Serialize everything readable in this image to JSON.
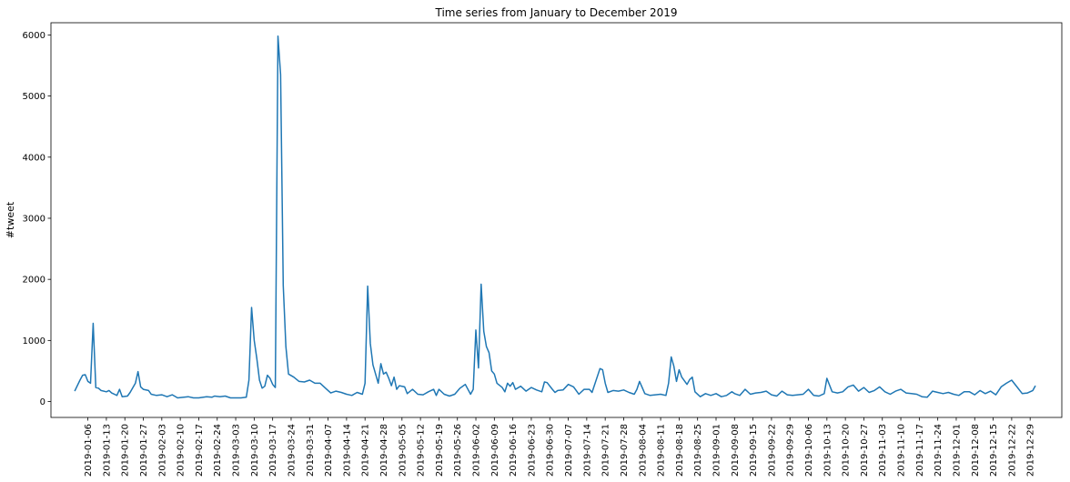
{
  "chart_data": {
    "type": "line",
    "title": "Time series from January to December 2019",
    "xlabel": "",
    "ylabel": "#tweet",
    "ylim": [
      -260,
      6200
    ],
    "xlim": [
      "2018-12-23",
      "2020-01-10"
    ],
    "yticks": [
      0,
      1000,
      2000,
      3000,
      4000,
      5000,
      6000
    ],
    "xticks": [
      "2019-01-06",
      "2019-01-13",
      "2019-01-20",
      "2019-01-27",
      "2019-02-03",
      "2019-02-10",
      "2019-02-17",
      "2019-02-24",
      "2019-03-03",
      "2019-03-10",
      "2019-03-17",
      "2019-03-24",
      "2019-03-31",
      "2019-04-07",
      "2019-04-14",
      "2019-04-21",
      "2019-04-28",
      "2019-05-05",
      "2019-05-12",
      "2019-05-19",
      "2019-05-26",
      "2019-06-02",
      "2019-06-09",
      "2019-06-16",
      "2019-06-23",
      "2019-06-30",
      "2019-07-07",
      "2019-07-14",
      "2019-07-21",
      "2019-07-28",
      "2019-08-04",
      "2019-08-11",
      "2019-08-18",
      "2019-08-25",
      "2019-09-01",
      "2019-09-08",
      "2019-09-15",
      "2019-09-22",
      "2019-09-29",
      "2019-10-06",
      "2019-10-13",
      "2019-10-20",
      "2019-10-27",
      "2019-11-03",
      "2019-11-10",
      "2019-11-17",
      "2019-11-24",
      "2019-12-01",
      "2019-12-08",
      "2019-12-15",
      "2019-12-22",
      "2019-12-29"
    ],
    "grid": false,
    "color": "#1f77b4",
    "series": [
      {
        "points": [
          [
            "2019-01-01",
            170
          ],
          [
            "2019-01-03",
            350
          ],
          [
            "2019-01-04",
            430
          ],
          [
            "2019-01-05",
            440
          ],
          [
            "2019-01-06",
            330
          ],
          [
            "2019-01-07",
            300
          ],
          [
            "2019-01-08",
            1280
          ],
          [
            "2019-01-09",
            230
          ],
          [
            "2019-01-10",
            220
          ],
          [
            "2019-01-11",
            180
          ],
          [
            "2019-01-13",
            160
          ],
          [
            "2019-01-14",
            180
          ],
          [
            "2019-01-15",
            140
          ],
          [
            "2019-01-17",
            100
          ],
          [
            "2019-01-18",
            200
          ],
          [
            "2019-01-19",
            80
          ],
          [
            "2019-01-21",
            90
          ],
          [
            "2019-01-22",
            150
          ],
          [
            "2019-01-24",
            300
          ],
          [
            "2019-01-25",
            490
          ],
          [
            "2019-01-26",
            240
          ],
          [
            "2019-01-27",
            200
          ],
          [
            "2019-01-29",
            180
          ],
          [
            "2019-01-30",
            120
          ],
          [
            "2019-02-01",
            100
          ],
          [
            "2019-02-03",
            110
          ],
          [
            "2019-02-05",
            80
          ],
          [
            "2019-02-07",
            110
          ],
          [
            "2019-02-09",
            60
          ],
          [
            "2019-02-13",
            80
          ],
          [
            "2019-02-15",
            60
          ],
          [
            "2019-02-17",
            60
          ],
          [
            "2019-02-20",
            80
          ],
          [
            "2019-02-22",
            70
          ],
          [
            "2019-02-23",
            90
          ],
          [
            "2019-02-25",
            80
          ],
          [
            "2019-02-27",
            90
          ],
          [
            "2019-03-01",
            60
          ],
          [
            "2019-03-03",
            60
          ],
          [
            "2019-03-05",
            60
          ],
          [
            "2019-03-07",
            70
          ],
          [
            "2019-03-08",
            350
          ],
          [
            "2019-03-09",
            1540
          ],
          [
            "2019-03-10",
            1000
          ],
          [
            "2019-03-11",
            700
          ],
          [
            "2019-03-12",
            350
          ],
          [
            "2019-03-13",
            220
          ],
          [
            "2019-03-14",
            250
          ],
          [
            "2019-03-15",
            430
          ],
          [
            "2019-03-16",
            380
          ],
          [
            "2019-03-17",
            280
          ],
          [
            "2019-03-18",
            230
          ],
          [
            "2019-03-19",
            5980
          ],
          [
            "2019-03-20",
            5350
          ],
          [
            "2019-03-21",
            1900
          ],
          [
            "2019-03-22",
            900
          ],
          [
            "2019-03-23",
            450
          ],
          [
            "2019-03-25",
            400
          ],
          [
            "2019-03-27",
            330
          ],
          [
            "2019-03-29",
            320
          ],
          [
            "2019-03-31",
            350
          ],
          [
            "2019-04-02",
            300
          ],
          [
            "2019-04-04",
            300
          ],
          [
            "2019-04-06",
            220
          ],
          [
            "2019-04-08",
            140
          ],
          [
            "2019-04-10",
            170
          ],
          [
            "2019-04-12",
            150
          ],
          [
            "2019-04-14",
            120
          ],
          [
            "2019-04-16",
            100
          ],
          [
            "2019-04-18",
            150
          ],
          [
            "2019-04-20",
            120
          ],
          [
            "2019-04-21",
            300
          ],
          [
            "2019-04-22",
            1890
          ],
          [
            "2019-04-23",
            950
          ],
          [
            "2019-04-24",
            600
          ],
          [
            "2019-04-25",
            450
          ],
          [
            "2019-04-26",
            300
          ],
          [
            "2019-04-27",
            620
          ],
          [
            "2019-04-28",
            450
          ],
          [
            "2019-04-29",
            480
          ],
          [
            "2019-04-30",
            380
          ],
          [
            "2019-05-01",
            260
          ],
          [
            "2019-05-02",
            400
          ],
          [
            "2019-05-03",
            200
          ],
          [
            "2019-05-04",
            260
          ],
          [
            "2019-05-06",
            240
          ],
          [
            "2019-05-07",
            130
          ],
          [
            "2019-05-09",
            200
          ],
          [
            "2019-05-11",
            120
          ],
          [
            "2019-05-13",
            110
          ],
          [
            "2019-05-15",
            160
          ],
          [
            "2019-05-17",
            200
          ],
          [
            "2019-05-18",
            100
          ],
          [
            "2019-05-19",
            200
          ],
          [
            "2019-05-21",
            120
          ],
          [
            "2019-05-23",
            90
          ],
          [
            "2019-05-25",
            120
          ],
          [
            "2019-05-27",
            220
          ],
          [
            "2019-05-29",
            280
          ],
          [
            "2019-05-31",
            120
          ],
          [
            "2019-06-01",
            200
          ],
          [
            "2019-06-02",
            1170
          ],
          [
            "2019-06-03",
            550
          ],
          [
            "2019-06-04",
            1920
          ],
          [
            "2019-06-05",
            1150
          ],
          [
            "2019-06-06",
            900
          ],
          [
            "2019-06-07",
            800
          ],
          [
            "2019-06-08",
            500
          ],
          [
            "2019-06-09",
            450
          ],
          [
            "2019-06-10",
            300
          ],
          [
            "2019-06-12",
            230
          ],
          [
            "2019-06-13",
            160
          ],
          [
            "2019-06-14",
            300
          ],
          [
            "2019-06-15",
            250
          ],
          [
            "2019-06-16",
            310
          ],
          [
            "2019-06-17",
            200
          ],
          [
            "2019-06-19",
            250
          ],
          [
            "2019-06-21",
            170
          ],
          [
            "2019-06-23",
            230
          ],
          [
            "2019-06-25",
            190
          ],
          [
            "2019-06-27",
            160
          ],
          [
            "2019-06-28",
            320
          ],
          [
            "2019-06-29",
            310
          ],
          [
            "2019-07-01",
            200
          ],
          [
            "2019-07-02",
            150
          ],
          [
            "2019-07-03",
            180
          ],
          [
            "2019-07-05",
            190
          ],
          [
            "2019-07-07",
            280
          ],
          [
            "2019-07-09",
            240
          ],
          [
            "2019-07-11",
            120
          ],
          [
            "2019-07-13",
            200
          ],
          [
            "2019-07-15",
            200
          ],
          [
            "2019-07-16",
            150
          ],
          [
            "2019-07-19",
            540
          ],
          [
            "2019-07-20",
            520
          ],
          [
            "2019-07-21",
            300
          ],
          [
            "2019-07-22",
            150
          ],
          [
            "2019-07-24",
            180
          ],
          [
            "2019-07-26",
            170
          ],
          [
            "2019-07-28",
            190
          ],
          [
            "2019-07-30",
            150
          ],
          [
            "2019-08-01",
            120
          ],
          [
            "2019-08-02",
            200
          ],
          [
            "2019-08-03",
            330
          ],
          [
            "2019-08-04",
            230
          ],
          [
            "2019-08-05",
            130
          ],
          [
            "2019-08-07",
            100
          ],
          [
            "2019-08-09",
            110
          ],
          [
            "2019-08-11",
            120
          ],
          [
            "2019-08-13",
            100
          ],
          [
            "2019-08-14",
            300
          ],
          [
            "2019-08-15",
            730
          ],
          [
            "2019-08-16",
            580
          ],
          [
            "2019-08-17",
            330
          ],
          [
            "2019-08-18",
            520
          ],
          [
            "2019-08-19",
            400
          ],
          [
            "2019-08-21",
            280
          ],
          [
            "2019-08-22",
            360
          ],
          [
            "2019-08-23",
            400
          ],
          [
            "2019-08-24",
            160
          ],
          [
            "2019-08-26",
            80
          ],
          [
            "2019-08-28",
            130
          ],
          [
            "2019-08-30",
            100
          ],
          [
            "2019-09-01",
            130
          ],
          [
            "2019-09-03",
            80
          ],
          [
            "2019-09-05",
            100
          ],
          [
            "2019-09-07",
            160
          ],
          [
            "2019-09-08",
            130
          ],
          [
            "2019-09-10",
            100
          ],
          [
            "2019-09-12",
            200
          ],
          [
            "2019-09-14",
            120
          ],
          [
            "2019-09-16",
            140
          ],
          [
            "2019-09-18",
            150
          ],
          [
            "2019-09-20",
            170
          ],
          [
            "2019-09-22",
            110
          ],
          [
            "2019-09-24",
            90
          ],
          [
            "2019-09-26",
            170
          ],
          [
            "2019-09-28",
            110
          ],
          [
            "2019-09-30",
            100
          ],
          [
            "2019-10-02",
            110
          ],
          [
            "2019-10-04",
            120
          ],
          [
            "2019-10-06",
            200
          ],
          [
            "2019-10-08",
            100
          ],
          [
            "2019-10-10",
            90
          ],
          [
            "2019-10-12",
            130
          ],
          [
            "2019-10-13",
            380
          ],
          [
            "2019-10-15",
            160
          ],
          [
            "2019-10-17",
            140
          ],
          [
            "2019-10-19",
            160
          ],
          [
            "2019-10-21",
            240
          ],
          [
            "2019-10-23",
            270
          ],
          [
            "2019-10-25",
            170
          ],
          [
            "2019-10-27",
            230
          ],
          [
            "2019-10-29",
            150
          ],
          [
            "2019-10-31",
            180
          ],
          [
            "2019-11-02",
            240
          ],
          [
            "2019-11-04",
            160
          ],
          [
            "2019-11-06",
            120
          ],
          [
            "2019-11-08",
            170
          ],
          [
            "2019-11-10",
            200
          ],
          [
            "2019-11-12",
            140
          ],
          [
            "2019-11-14",
            130
          ],
          [
            "2019-11-16",
            120
          ],
          [
            "2019-11-18",
            80
          ],
          [
            "2019-11-20",
            70
          ],
          [
            "2019-11-22",
            170
          ],
          [
            "2019-11-24",
            150
          ],
          [
            "2019-11-26",
            130
          ],
          [
            "2019-11-28",
            150
          ],
          [
            "2019-11-30",
            120
          ],
          [
            "2019-12-02",
            100
          ],
          [
            "2019-12-04",
            160
          ],
          [
            "2019-12-06",
            160
          ],
          [
            "2019-12-08",
            110
          ],
          [
            "2019-12-10",
            180
          ],
          [
            "2019-12-12",
            130
          ],
          [
            "2019-12-14",
            170
          ],
          [
            "2019-12-16",
            110
          ],
          [
            "2019-12-18",
            240
          ],
          [
            "2019-12-20",
            300
          ],
          [
            "2019-12-22",
            350
          ],
          [
            "2019-12-24",
            240
          ],
          [
            "2019-12-26",
            130
          ],
          [
            "2019-12-28",
            140
          ],
          [
            "2019-12-30",
            180
          ],
          [
            "2019-12-31",
            260
          ]
        ]
      }
    ]
  }
}
